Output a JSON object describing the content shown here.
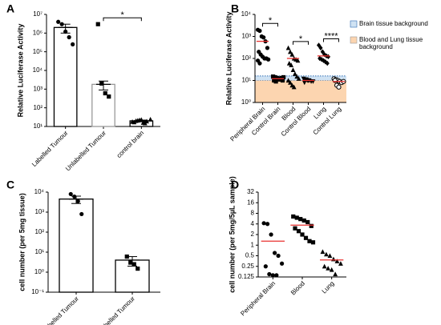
{
  "chart_data": [
    {
      "type": "bar",
      "panel": "A",
      "ylabel": "Relative Luciferase Activity",
      "categories": [
        "Labelled Tumour",
        "Unlabelled Tumour",
        "control brain"
      ],
      "values": [
        2000000,
        1800,
        20
      ],
      "errors": [
        1000000,
        900,
        2
      ],
      "points": [
        [
          4000000,
          3000000,
          1200000,
          600000,
          250000
        ],
        [
          3000000,
          2000,
          600,
          400
        ],
        [
          18,
          20,
          22,
          16,
          19,
          24,
          17,
          21,
          23,
          15
        ]
      ],
      "points_fix": null,
      "markers": [
        "circle",
        "square",
        "triangle"
      ],
      "bar_colors": [
        "#000000",
        "#999999",
        "#000000"
      ],
      "log": true,
      "ylim": [
        10,
        10000000
      ],
      "yticks": [
        {
          "value": 10,
          "label": "10¹"
        },
        {
          "value": 100,
          "label": "10²"
        },
        {
          "value": 1000,
          "label": "10³"
        },
        {
          "value": 10000,
          "label": "10⁴"
        },
        {
          "value": 100000,
          "label": "10⁵"
        },
        {
          "value": 1000000,
          "label": "10⁶"
        },
        {
          "value": 10000000,
          "label": "10⁷"
        }
      ],
      "significance": [
        {
          "pair": [
            1,
            2
          ],
          "label": "*"
        }
      ]
    },
    {
      "type": "dotplot",
      "panel": "B",
      "ylabel": "Relative Luciferase Activity",
      "categories": [
        "Peripheral Brain",
        "Control Brain",
        "Blood",
        "Control Blood",
        "Lung",
        "Control Lung"
      ],
      "values": [
        600,
        12,
        100,
        10,
        130,
        9
      ],
      "mean_color": "#e8312f",
      "points": [
        [
          2000,
          1800,
          1000,
          900,
          600,
          300,
          200,
          150,
          120,
          100,
          100,
          90,
          80,
          60
        ],
        [
          15,
          14,
          13,
          12,
          11,
          10,
          10,
          9,
          12,
          11,
          13,
          14
        ],
        [
          300,
          200,
          150,
          100,
          90,
          80,
          60,
          50,
          30,
          20,
          15,
          12,
          10,
          8,
          6,
          5
        ],
        [
          12,
          11,
          10,
          10,
          9,
          9,
          8,
          11,
          10
        ],
        [
          400,
          300,
          200,
          150,
          130,
          120,
          100,
          90,
          80,
          70,
          60
        ],
        [
          12,
          11,
          10,
          9,
          8,
          9,
          10,
          6,
          5
        ]
      ],
      "markers": [
        "circle",
        "square",
        "triangle",
        "triangle-down",
        "diamond",
        "open-circle"
      ],
      "log": true,
      "ylim": [
        1,
        10000
      ],
      "yticks": [
        {
          "value": 1,
          "label": "10⁰"
        },
        {
          "value": 10,
          "label": "10¹"
        },
        {
          "value": 100,
          "label": "10²"
        },
        {
          "value": 1000,
          "label": "10³"
        },
        {
          "value": 10000,
          "label": "10⁴"
        }
      ],
      "backgrounds": [
        {
          "name": "Brain tissue background",
          "color": "#cfe2f3",
          "border": "#2f6db5",
          "range": [
            10,
            16
          ]
        },
        {
          "name": "Blood and Lung tissue background",
          "color": "#fcd5b0",
          "border": null,
          "range": [
            1,
            10
          ]
        }
      ],
      "significance": [
        {
          "pair": [
            0,
            1
          ],
          "label": "*"
        },
        {
          "pair": [
            2,
            3
          ],
          "label": "*"
        },
        {
          "pair": [
            4,
            5
          ],
          "label": "****"
        }
      ]
    },
    {
      "type": "bar",
      "panel": "C",
      "ylabel": "cell number (per 5mg tissue)",
      "categories": [
        "Labelled Tumour",
        "Unlabelled Tumour"
      ],
      "values": [
        4500,
        4
      ],
      "errors": [
        1800,
        2
      ],
      "points": [
        [
          8000,
          6000,
          3500,
          800
        ],
        [
          6,
          3,
          2.5,
          1.5
        ]
      ],
      "markers": [
        "circle",
        "square"
      ],
      "bar_colors": [
        "#000000",
        "#000000"
      ],
      "log": true,
      "ylim": [
        0.1,
        10000
      ],
      "yticks": [
        {
          "value": 0.1,
          "label": "10⁻¹"
        },
        {
          "value": 1,
          "label": "10⁰"
        },
        {
          "value": 10,
          "label": "10¹"
        },
        {
          "value": 100,
          "label": "10²"
        },
        {
          "value": 1000,
          "label": "10³"
        },
        {
          "value": 10000,
          "label": "10⁴"
        }
      ],
      "significance": []
    },
    {
      "type": "dotplot",
      "panel": "D",
      "ylabel": "cell number (per 5mg/5µL sample)",
      "categories": [
        "Peripheral Brain",
        "Blood",
        "Lung"
      ],
      "values": [
        1.3,
        3.7,
        0.38
      ],
      "mean_color": "#e8312f",
      "points": [
        [
          4.2,
          4,
          2,
          0.6,
          0.5,
          0.3,
          0.25,
          0.15,
          0.14,
          0.14
        ],
        [
          6.5,
          6,
          5.5,
          5,
          4.5,
          3.5,
          3,
          2.5,
          2,
          1.6,
          1.3,
          1.2
        ],
        [
          0.65,
          0.55,
          0.5,
          0.4,
          0.35,
          0.3,
          0.25,
          0.22,
          0.2,
          0.15
        ]
      ],
      "markers": [
        "circle",
        "square",
        "triangle"
      ],
      "log": true,
      "ylim": [
        0.125,
        32
      ],
      "yticks": [
        0.125,
        0.25,
        0.5,
        1,
        2,
        4,
        8,
        16,
        32
      ],
      "backgrounds": [],
      "significance": []
    }
  ]
}
